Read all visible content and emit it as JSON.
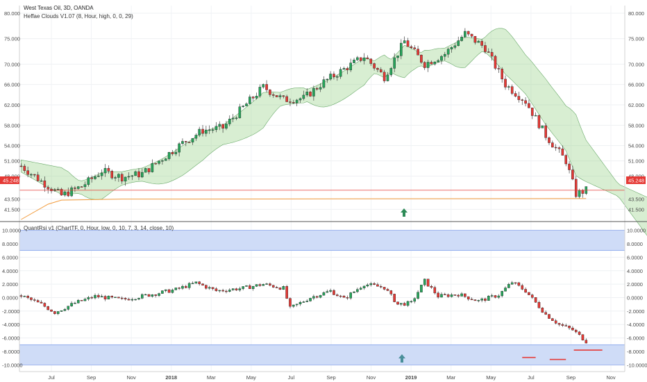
{
  "header": {
    "title": "West Texas Oil, 3D, OANDA",
    "indicator": "Heffae Clouds V1.07 (8, Hour, high, 0, 0, 29)"
  },
  "lower_header": {
    "indicator": "QuantRsi v1 (ChartTF, 0, Hour, low, 0, 10, 7, 3, 14, close, 10)"
  },
  "price_label": "45.248",
  "colors": {
    "up": "#26a65b",
    "down": "#e53935",
    "cloud_green": "#8fcf7f",
    "cloud_red": "#f3a595",
    "band_blue": "#cfdcf7",
    "orange": "#f29a3a",
    "price_line": "#e53935",
    "arrow": "#2e8b57"
  },
  "chart_data": [
    {
      "type": "candlestick",
      "panel": "upper",
      "title": "West Texas Oil, 3D, OANDA",
      "ylim": [
        39.5,
        81.5
      ],
      "y_ticks": [
        "80.000",
        "75.000",
        "70.000",
        "66.000",
        "62.000",
        "58.000",
        "54.000",
        "51.000",
        "48.000",
        "45.248",
        "43.500",
        "41.500"
      ],
      "y_tick_values": [
        80,
        75,
        70,
        66,
        62,
        58,
        54,
        51,
        48,
        45.248,
        43.5,
        41.5
      ],
      "x_ticks": [
        "Jul",
        "Sep",
        "Nov",
        "2018",
        "Mar",
        "May",
        "Jul",
        "Sep",
        "Nov",
        "2019",
        "Mar",
        "May",
        "Jul",
        "Sep",
        "Nov"
      ],
      "close_path": [
        [
          0,
          50
        ],
        [
          6,
          47
        ],
        [
          12,
          44.2
        ],
        [
          18,
          46
        ],
        [
          24,
          49
        ],
        [
          30,
          47.8
        ],
        [
          36,
          48.5
        ],
        [
          42,
          51.5
        ],
        [
          48,
          54.5
        ],
        [
          54,
          57
        ],
        [
          60,
          57.5
        ],
        [
          66,
          61.5
        ],
        [
          72,
          65.5
        ],
        [
          78,
          63
        ],
        [
          84,
          63.3
        ],
        [
          90,
          66.5
        ],
        [
          96,
          69
        ],
        [
          102,
          71.5
        ],
        [
          108,
          67.5
        ],
        [
          114,
          74.5
        ],
        [
          120,
          70
        ],
        [
          126,
          72
        ],
        [
          132,
          76
        ],
        [
          138,
          73.2
        ],
        [
          144,
          66
        ],
        [
          150,
          62.7
        ],
        [
          156,
          56
        ],
        [
          162,
          51
        ],
        [
          165,
          44.5
        ],
        [
          168,
          45.25
        ]
      ],
      "orange_line": [
        [
          0,
          39.5
        ],
        [
          8,
          42.5
        ],
        [
          12,
          43.3
        ],
        [
          30,
          43.5
        ],
        [
          168,
          43.6
        ]
      ],
      "current_price": 45.248
    },
    {
      "type": "candlestick",
      "panel": "lower",
      "title": "QuantRsi v1 (ChartTF, 0, Hour, low, 0, 10, 7, 3, 14, close, 10)",
      "ylim": [
        -11,
        11
      ],
      "y_ticks": [
        "10.0000",
        "8.0000",
        "6.0000",
        "4.0000",
        "2.0000",
        "0.0000",
        "-2.0000",
        "-4.0000",
        "-6.0000",
        "-8.0000",
        "-10.0000"
      ],
      "y_tick_values": [
        10,
        8,
        6,
        4,
        2,
        0,
        -2,
        -4,
        -6,
        -8,
        -10
      ],
      "bands": [
        [
          7,
          10
        ],
        [
          -10,
          -7
        ]
      ],
      "series_path": [
        [
          0,
          0.3
        ],
        [
          6,
          -1
        ],
        [
          10,
          -2.2
        ],
        [
          16,
          -0.8
        ],
        [
          22,
          0.2
        ],
        [
          30,
          -0.3
        ],
        [
          38,
          0.4
        ],
        [
          46,
          1.2
        ],
        [
          52,
          2.2
        ],
        [
          58,
          1
        ],
        [
          66,
          1.4
        ],
        [
          72,
          2
        ],
        [
          78,
          1.4
        ],
        [
          80,
          -1.6
        ],
        [
          86,
          0
        ],
        [
          92,
          1
        ],
        [
          96,
          -0.2
        ],
        [
          102,
          2
        ],
        [
          108,
          1.5
        ],
        [
          112,
          -1
        ],
        [
          116,
          -0.8
        ],
        [
          120,
          2.5
        ],
        [
          124,
          0.2
        ],
        [
          130,
          0.5
        ],
        [
          136,
          -0.5
        ],
        [
          142,
          0.4
        ],
        [
          146,
          2.3
        ],
        [
          150,
          1
        ],
        [
          156,
          -2.5
        ],
        [
          160,
          -4
        ],
        [
          164,
          -4.8
        ],
        [
          168,
          -6.5
        ]
      ]
    }
  ]
}
